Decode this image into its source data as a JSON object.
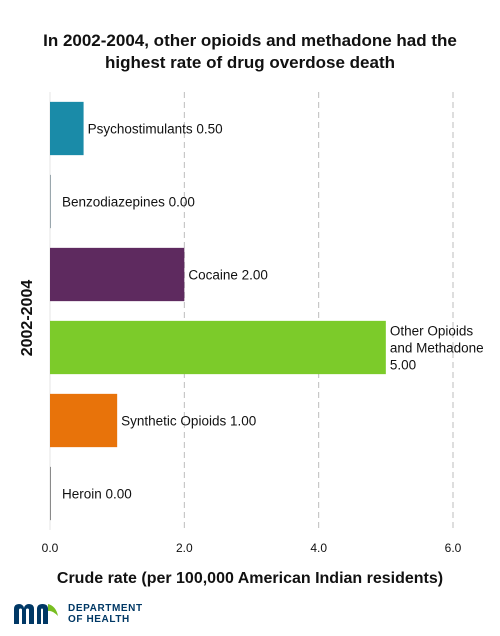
{
  "title": {
    "line1": "In 2002-2004, other opioids and methadone had the",
    "line2": "highest rate of drug overdose death"
  },
  "chart_data": {
    "type": "bar",
    "orientation": "horizontal",
    "title": "In 2002-2004, other opioids and methadone had the highest rate of drug overdose death",
    "xlabel": "Crude rate (per 100,000 American Indian residents)",
    "ylabel": "2002-2004",
    "xlim": [
      0,
      6
    ],
    "xticks": [
      0,
      2,
      4,
      6
    ],
    "xtick_labels": [
      "0.0",
      "2.0",
      "4.0",
      "6.0"
    ],
    "grid": "vertical dashed",
    "categories": [
      "Psychostimulants",
      "Benzodiazepines",
      "Cocaine",
      "Other Opioids and Methadone",
      "Synthetic Opioids",
      "Heroin"
    ],
    "values": [
      0.5,
      0.0,
      2.0,
      5.0,
      1.0,
      0.0
    ],
    "data_labels": [
      [
        "Psychostimulants 0.50"
      ],
      [
        "Benzodiazepines 0.00"
      ],
      [
        "Cocaine 2.00"
      ],
      [
        "Other Opioids",
        "and Methadone",
        "5.00"
      ],
      [
        "Synthetic Opioids 1.00"
      ],
      [
        "Heroin 0.00"
      ]
    ],
    "colors": [
      "#1a8ba8",
      "#9aa7ad",
      "#5e2a5f",
      "#7ccb2a",
      "#e8730a",
      "#8a8a8a"
    ]
  },
  "logo": {
    "line1": "DEPARTMENT",
    "line2": "OF HEALTH",
    "colors": {
      "navy": "#003865",
      "green": "#78be21"
    }
  }
}
